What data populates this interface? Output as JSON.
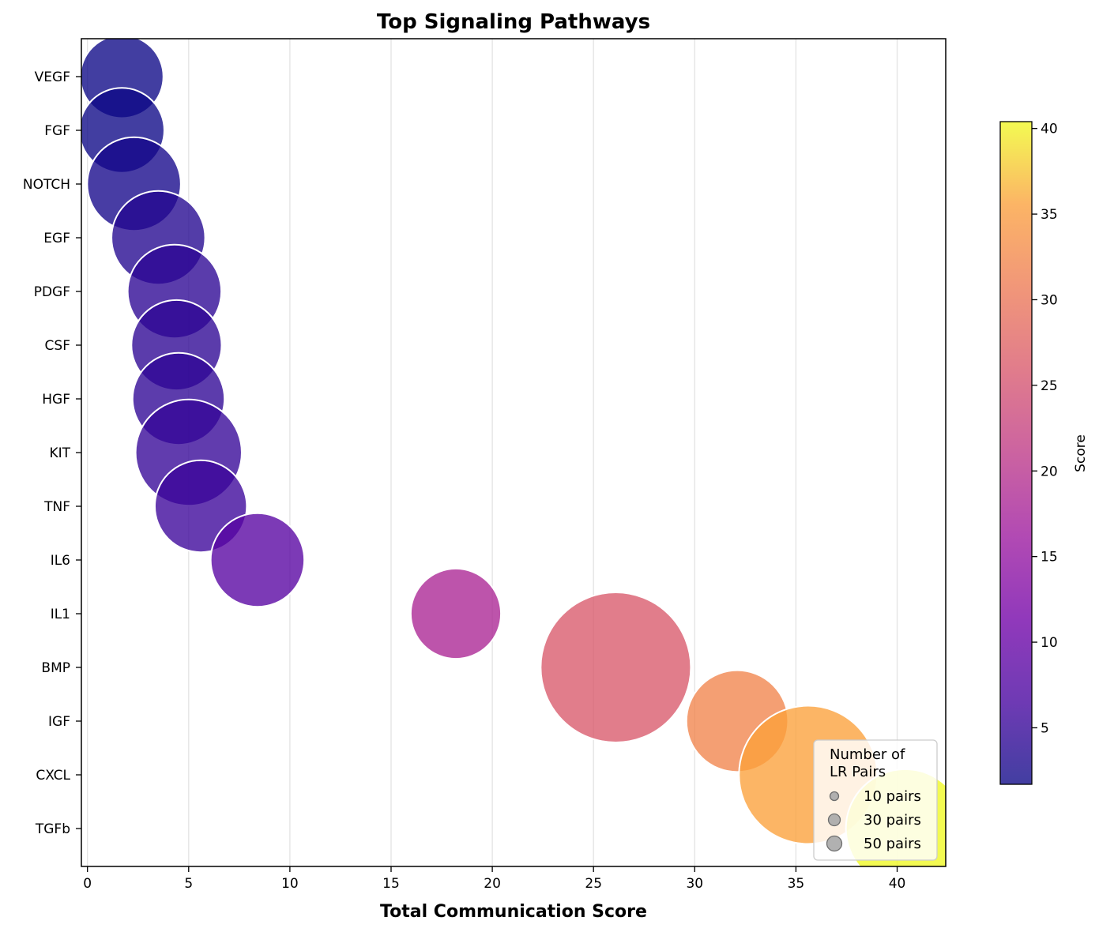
{
  "chart_data": {
    "type": "scatter",
    "title": "Top Signaling Pathways",
    "xlabel": "Total Communication Score",
    "ylabel": "",
    "xlim": [
      -0.3,
      42.4
    ],
    "xticks": [
      0,
      5,
      10,
      15,
      20,
      25,
      30,
      35,
      40
    ],
    "grid": {
      "x": true,
      "y": false
    },
    "categories": [
      "VEGF",
      "FGF",
      "NOTCH",
      "EGF",
      "PDGF",
      "CSF",
      "HGF",
      "KIT",
      "TNF",
      "IL6",
      "IL1",
      "BMP",
      "IGF",
      "CXCL",
      "TGFb"
    ],
    "points": [
      {
        "pathway": "VEGF",
        "x": 1.7,
        "score": 1.7,
        "lr_pairs": 22
      },
      {
        "pathway": "FGF",
        "x": 1.7,
        "score": 1.7,
        "lr_pairs": 23
      },
      {
        "pathway": "NOTCH",
        "x": 2.3,
        "score": 2.3,
        "lr_pairs": 28
      },
      {
        "pathway": "EGF",
        "x": 3.5,
        "score": 3.5,
        "lr_pairs": 28
      },
      {
        "pathway": "PDGF",
        "x": 4.3,
        "score": 4.3,
        "lr_pairs": 28
      },
      {
        "pathway": "CSF",
        "x": 4.4,
        "score": 4.4,
        "lr_pairs": 26
      },
      {
        "pathway": "HGF",
        "x": 4.5,
        "score": 4.5,
        "lr_pairs": 27
      },
      {
        "pathway": "KIT",
        "x": 5.0,
        "score": 5.0,
        "lr_pairs": 36
      },
      {
        "pathway": "TNF",
        "x": 5.6,
        "score": 5.6,
        "lr_pairs": 27
      },
      {
        "pathway": "IL6",
        "x": 8.4,
        "score": 8.4,
        "lr_pairs": 28
      },
      {
        "pathway": "IL1",
        "x": 18.2,
        "score": 18.2,
        "lr_pairs": 26
      },
      {
        "pathway": "BMP",
        "x": 26.1,
        "score": 26.1,
        "lr_pairs": 72
      },
      {
        "pathway": "IGF",
        "x": 32.1,
        "score": 32.1,
        "lr_pairs": 33
      },
      {
        "pathway": "CXCL",
        "x": 35.6,
        "score": 35.6,
        "lr_pairs": 61
      },
      {
        "pathway": "TGFb",
        "x": 40.4,
        "score": 40.4,
        "lr_pairs": 45
      }
    ],
    "colorbar": {
      "label": "Score",
      "colormap": "plasma",
      "range": [
        1.7,
        40.4
      ],
      "ticks": [
        5,
        10,
        15,
        20,
        25,
        30,
        35,
        40
      ]
    },
    "size_legend": {
      "title_lines": [
        "Number of",
        "LR Pairs"
      ],
      "placement": "lower-right",
      "entries": [
        {
          "label": "10 pairs",
          "value": 10
        },
        {
          "label": "30 pairs",
          "value": 30
        },
        {
          "label": "50 pairs",
          "value": 50
        }
      ]
    }
  }
}
